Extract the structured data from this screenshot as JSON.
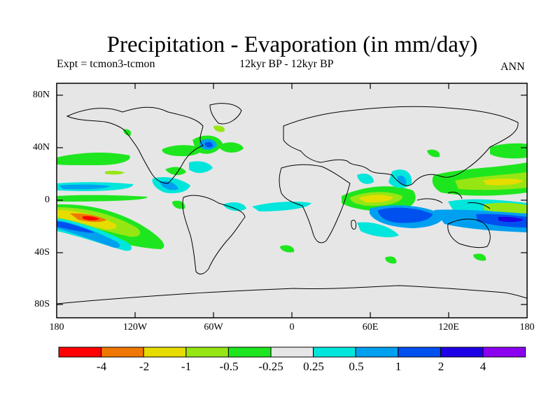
{
  "title": "Precipitation - Evaporation (in mm/day)",
  "experiment": "Expt = tcmon3-tcmon",
  "period": "12kyr BP - 12kyr BP",
  "season": "ANN",
  "map": {
    "projection": "cylindrical equidistant",
    "lon_range": [
      -180,
      180
    ],
    "lat_range": [
      -90,
      90
    ],
    "land_color": "#e6e6e6",
    "y_tick_labels": [
      "80N",
      "40N",
      "0",
      "40S",
      "80S"
    ],
    "x_tick_labels": [
      "180",
      "120W",
      "60W",
      "0",
      "60E",
      "120E",
      "180"
    ]
  },
  "colorbar": {
    "colors": [
      "#ff0000",
      "#f07800",
      "#e6dc00",
      "#96e614",
      "#1ee61e",
      "#e6e6e6",
      "#00e6dc",
      "#00a0f0",
      "#0050f0",
      "#1e00e6",
      "#8c00f0"
    ],
    "labels": [
      "-4",
      "-2",
      "-1",
      "-0.5",
      "-0.25",
      "0.25",
      "0.5",
      "1",
      "2",
      "4"
    ]
  }
}
